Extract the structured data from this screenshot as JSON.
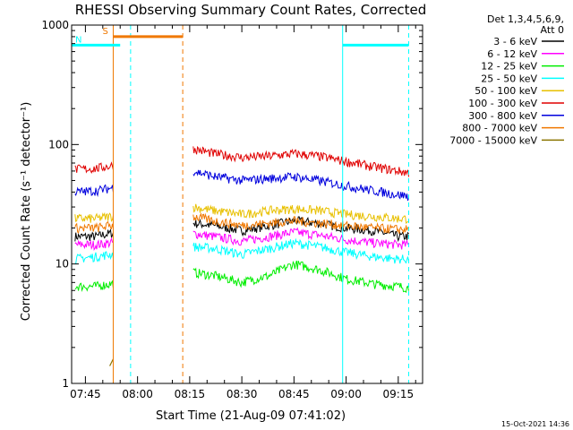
{
  "chart_data": {
    "type": "line",
    "title": "RHESSI Observing Summary Count Rates, Corrected",
    "xlabel": "Start Time (21-Aug-09 07:41:02)",
    "ylabel": "Corrected Count Rate (s⁻¹ detector⁻¹)",
    "y_scale": "log",
    "ylim": [
      1,
      1000
    ],
    "xlim": [
      "07:41:02",
      "09:22:00"
    ],
    "x_tick_labels": [
      "07:45",
      "08:00",
      "08:15",
      "08:30",
      "08:45",
      "09:00",
      "09:15"
    ],
    "y_tick_labels": [
      "1",
      "10",
      "100",
      "1000"
    ],
    "legend_header": [
      "Det 1,3,4,5,6,9,",
      "Att 0"
    ],
    "legend_position": "right",
    "grid": false,
    "data_gaps": [
      [
        "07:53:00",
        "08:16:00"
      ]
    ],
    "series": [
      {
        "name": "3 - 6 keV",
        "color": "#000000",
        "x": [
          "07:42",
          "07:48",
          "07:52",
          "08:16",
          "08:22",
          "08:30",
          "08:38",
          "08:45",
          "08:52",
          "09:00",
          "09:08",
          "09:15",
          "09:18"
        ],
        "values": [
          17,
          17,
          18,
          22,
          21,
          19,
          21,
          23,
          22,
          20,
          19,
          17,
          17
        ]
      },
      {
        "name": "6 - 12 keV",
        "color": "#ff00ff",
        "x": [
          "07:42",
          "07:48",
          "07:52",
          "08:16",
          "08:22",
          "08:30",
          "08:38",
          "08:45",
          "08:52",
          "09:00",
          "09:08",
          "09:15",
          "09:18"
        ],
        "values": [
          14.5,
          14.5,
          15,
          18,
          17,
          15.5,
          17,
          18.5,
          17.5,
          16,
          15,
          14.5,
          14.5
        ]
      },
      {
        "name": "12 - 25 keV",
        "color": "#00ee00",
        "x": [
          "07:42",
          "07:48",
          "07:52",
          "08:16",
          "08:22",
          "08:30",
          "08:38",
          "08:45",
          "08:52",
          "09:00",
          "09:08",
          "09:15",
          "09:18"
        ],
        "values": [
          6.5,
          6.5,
          6.8,
          8.5,
          8,
          7,
          8,
          10,
          9,
          7.5,
          6.8,
          6.5,
          6.3
        ]
      },
      {
        "name": "25 - 50 keV",
        "color": "#00ffff",
        "x": [
          "07:42",
          "07:48",
          "07:52",
          "08:16",
          "08:22",
          "08:30",
          "08:38",
          "08:45",
          "08:52",
          "09:00",
          "09:08",
          "09:15",
          "09:18"
        ],
        "values": [
          11,
          11.5,
          12,
          14,
          13.5,
          12,
          13.5,
          15,
          14,
          12.5,
          11.5,
          11,
          11
        ]
      },
      {
        "name": "50 - 100 keV",
        "color": "#e8c000",
        "x": [
          "07:42",
          "07:48",
          "07:52",
          "08:16",
          "08:22",
          "08:30",
          "08:38",
          "08:45",
          "08:52",
          "09:00",
          "09:08",
          "09:15",
          "09:18"
        ],
        "values": [
          24,
          24,
          25,
          30,
          28,
          26,
          28,
          29,
          28,
          26,
          25,
          24,
          24
        ]
      },
      {
        "name": "100 - 300 keV",
        "color": "#e00000",
        "x": [
          "07:42",
          "07:48",
          "07:52",
          "08:16",
          "08:22",
          "08:30",
          "08:38",
          "08:45",
          "08:52",
          "09:00",
          "09:08",
          "09:15",
          "09:18"
        ],
        "values": [
          62,
          63,
          66,
          92,
          84,
          78,
          80,
          84,
          80,
          72,
          65,
          60,
          58
        ]
      },
      {
        "name": "300 - 800 keV",
        "color": "#0000dd",
        "x": [
          "07:42",
          "07:48",
          "07:52",
          "08:16",
          "08:22",
          "08:30",
          "08:38",
          "08:45",
          "08:52",
          "09:00",
          "09:08",
          "09:15",
          "09:18"
        ],
        "values": [
          40,
          41,
          43,
          60,
          54,
          50,
          52,
          54,
          50,
          45,
          41,
          38,
          37
        ]
      },
      {
        "name": "800 - 7000 keV",
        "color": "#f07800",
        "x": [
          "07:42",
          "07:48",
          "07:52",
          "08:16",
          "08:22",
          "08:30",
          "08:38",
          "08:45",
          "08:52",
          "09:00",
          "09:08",
          "09:15",
          "09:18"
        ],
        "values": [
          20,
          20,
          21,
          25,
          23,
          21,
          22,
          23,
          22,
          21,
          20,
          19.5,
          19.5
        ]
      },
      {
        "name": "7000 - 15000 keV",
        "color": "#8b7500",
        "x": [
          "07:52",
          "07:53"
        ],
        "values": [
          1.4,
          1.6
        ]
      }
    ],
    "flags": [
      {
        "label": "S",
        "color": "#f07800",
        "start": "07:53:00",
        "end": "08:13:00",
        "level": 800
      },
      {
        "label": "N",
        "color": "#00ffff",
        "start": "07:41:02",
        "end": "07:55:00",
        "level": 680
      },
      {
        "label": "",
        "color": "#00ffff",
        "start": "08:59:00",
        "end": "09:18:00",
        "level": 680
      }
    ],
    "vertical_markers": [
      {
        "color": "#00ffff",
        "style": "solid",
        "x": "07:41:02"
      },
      {
        "color": "#f07800",
        "style": "solid",
        "x": "07:53:00"
      },
      {
        "color": "#00ffff",
        "style": "dashed",
        "x": "07:58:00"
      },
      {
        "color": "#f07800",
        "style": "dashed",
        "x": "08:13:00"
      },
      {
        "color": "#00ffff",
        "style": "solid",
        "x": "08:59:00"
      },
      {
        "color": "#00ffff",
        "style": "dashed",
        "x": "09:18:00"
      }
    ]
  },
  "footer": {
    "timestamp": "15-Oct-2021 14:36"
  }
}
